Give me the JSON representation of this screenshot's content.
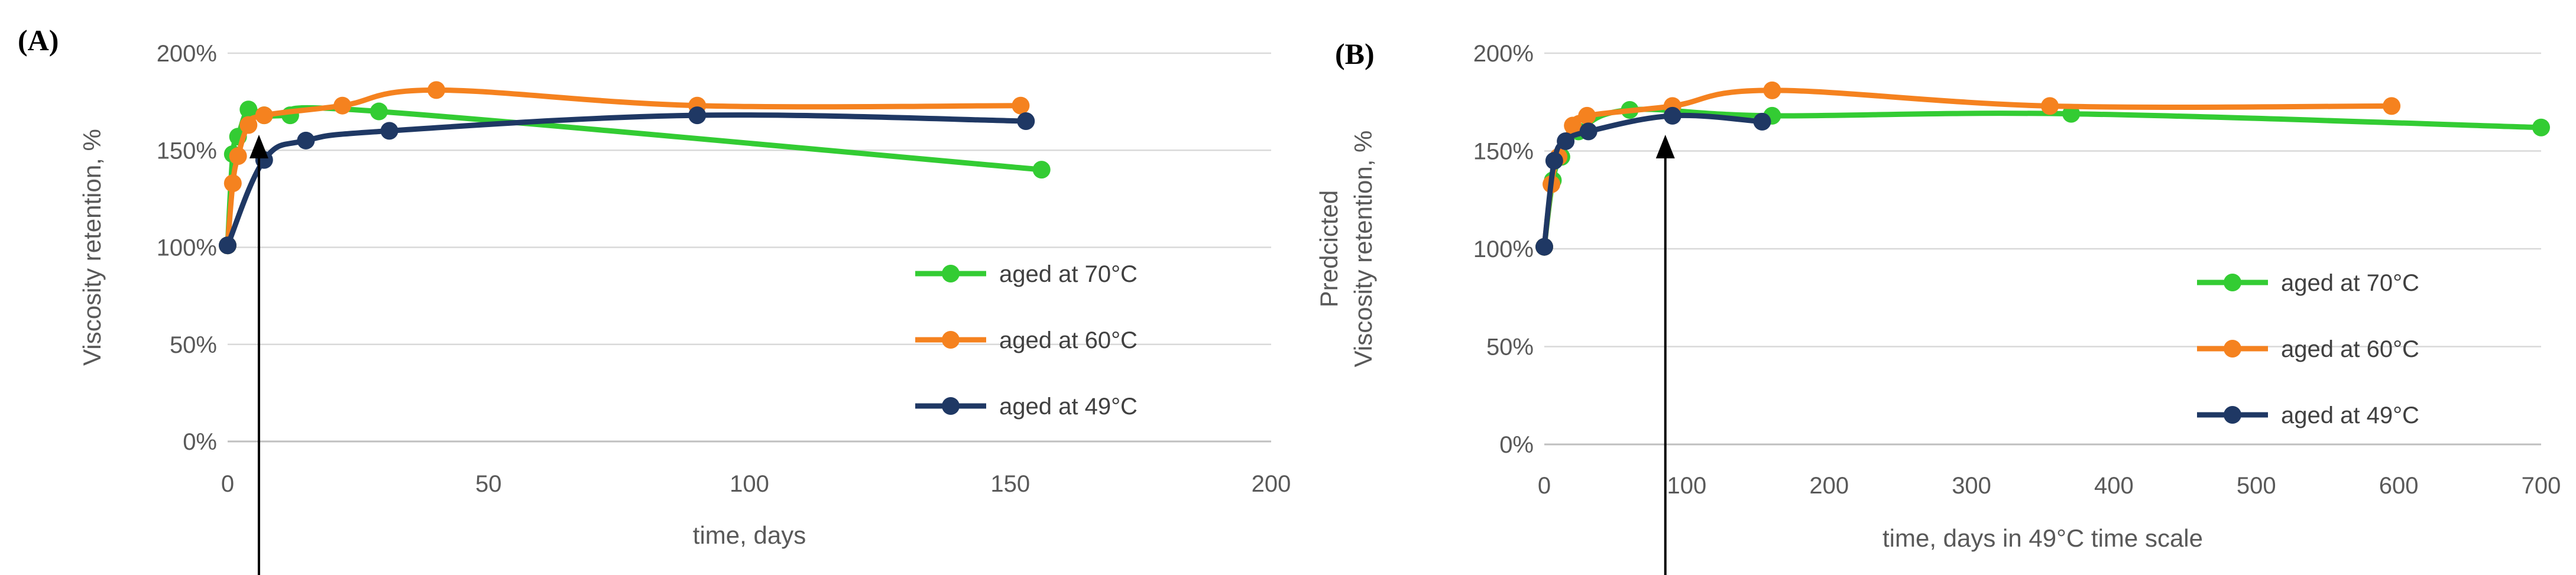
{
  "colors": {
    "green": "#33cc33",
    "orange": "#f5821f",
    "navy": "#1f3864",
    "text": "#595959",
    "grid": "#d9d9d9"
  },
  "chart_data": [
    {
      "panel": "(A)",
      "type": "line",
      "xlabel": "time, days",
      "ylabel_lines": [
        "Viscosity retention, %"
      ],
      "xlim": [
        0,
        200
      ],
      "ylim": [
        0,
        200
      ],
      "xticks": [
        "0",
        "50",
        "100",
        "150",
        "200"
      ],
      "yticks": [
        "0%",
        "50%",
        "100%",
        "150%",
        "200%"
      ],
      "grid": true,
      "legend_position": "right",
      "series": [
        {
          "name": "aged at 70°C",
          "color": "#33cc33",
          "x": [
            0,
            1,
            2,
            4,
            7,
            12,
            29,
            156
          ],
          "y": [
            101,
            148,
            157,
            171,
            168,
            168,
            170,
            140
          ]
        },
        {
          "name": "aged at 60°C",
          "color": "#f5821f",
          "x": [
            0,
            1,
            2,
            4,
            7,
            22,
            40,
            90,
            152
          ],
          "y": [
            101,
            133,
            147,
            163,
            168,
            173,
            181,
            173,
            173
          ]
        },
        {
          "name": "aged at 49°C",
          "color": "#1f3864",
          "x": [
            0,
            7,
            15,
            31,
            90,
            153
          ],
          "y": [
            101,
            145,
            155,
            160,
            168,
            165
          ]
        }
      ],
      "annotation": {
        "type": "arrow",
        "x": 6
      }
    },
    {
      "panel": "(B)",
      "type": "line",
      "xlabel": "time, days in 49°C time scale",
      "ylabel_lines": [
        "Predcicted",
        "Viscosity retention, %"
      ],
      "xlim": [
        0,
        700
      ],
      "ylim": [
        0,
        200
      ],
      "xticks": [
        "0",
        "100",
        "200",
        "300",
        "400",
        "500",
        "600",
        "700"
      ],
      "yticks": [
        "0%",
        "50%",
        "100%",
        "150%",
        "200%"
      ],
      "grid": true,
      "legend_position": "right",
      "series": [
        {
          "name": "aged at 70°C",
          "color": "#33cc33",
          "x": [
            0,
            6,
            12,
            24,
            60,
            160,
            370,
            700
          ],
          "y": [
            101,
            135,
            147,
            160,
            171,
            168,
            169,
            162
          ]
        },
        {
          "name": "aged at 60°C",
          "color": "#f5821f",
          "x": [
            0,
            5,
            10,
            20,
            30,
            90,
            160,
            355,
            595
          ],
          "y": [
            101,
            133,
            147,
            163,
            168,
            173,
            181,
            173,
            173
          ]
        },
        {
          "name": "aged at 49°C",
          "color": "#1f3864",
          "x": [
            0,
            7,
            15,
            31,
            90,
            153
          ],
          "y": [
            101,
            145,
            155,
            160,
            168,
            165
          ]
        }
      ],
      "annotation": {
        "type": "arrow",
        "x": 85
      }
    }
  ]
}
